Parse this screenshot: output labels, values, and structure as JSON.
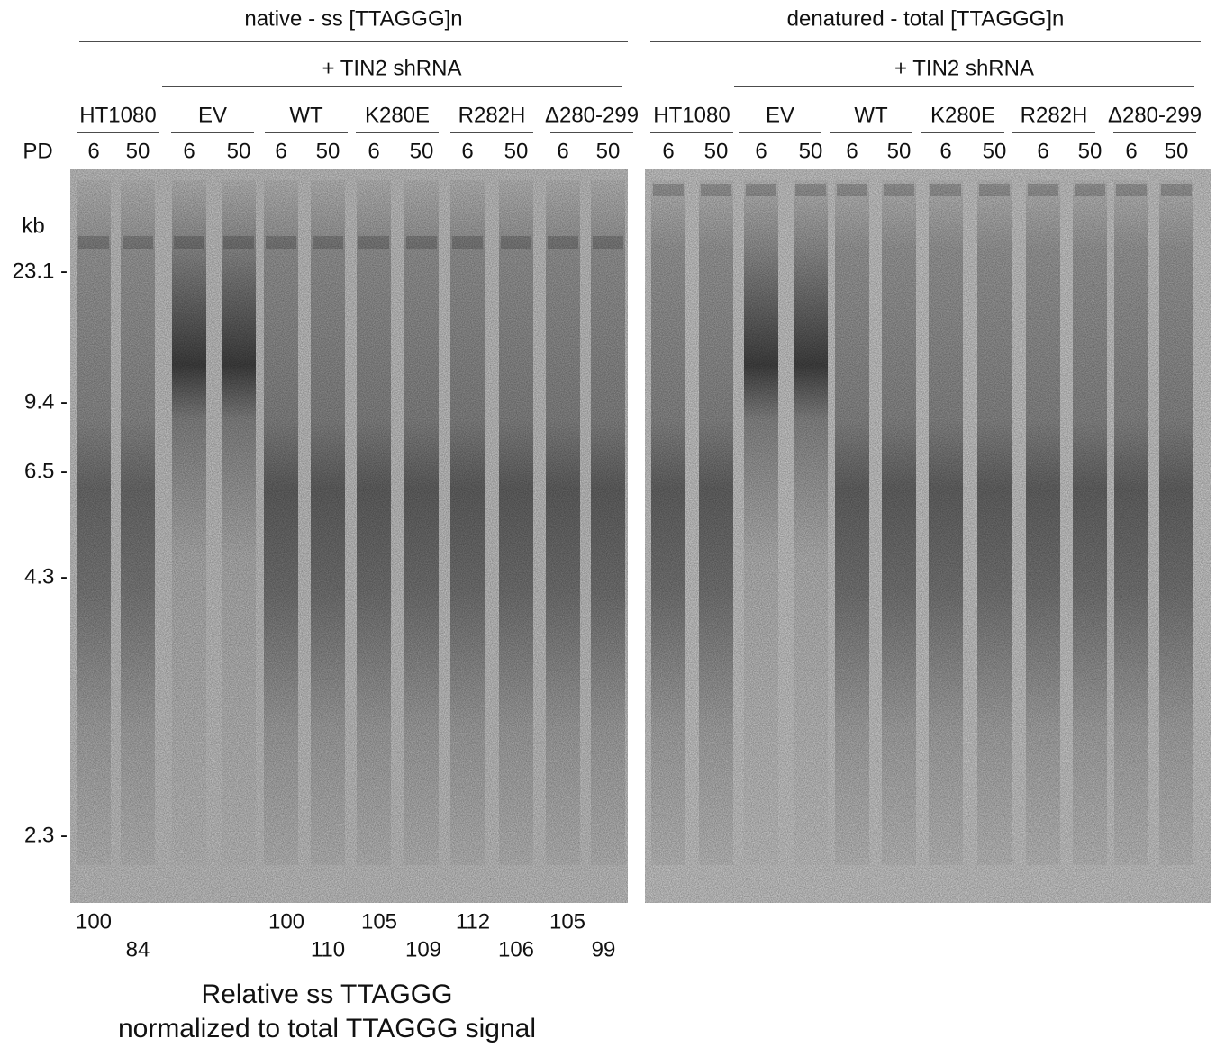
{
  "panels": [
    {
      "title": "native - ss [TTAGGG]n",
      "treatment": "+ TIN2 shRNA",
      "groups": [
        {
          "label": "HT1080",
          "lanes": [
            6,
            50
          ]
        },
        {
          "label": "EV",
          "lanes": [
            6,
            50
          ]
        },
        {
          "label": "WT",
          "lanes": [
            6,
            50
          ]
        },
        {
          "label": "K280E",
          "lanes": [
            6,
            50
          ]
        },
        {
          "label": "R282H",
          "lanes": [
            6,
            50
          ]
        },
        {
          "label": "Δ280-299",
          "lanes": [
            6,
            50
          ]
        }
      ]
    },
    {
      "title": "denatured - total [TTAGGG]n",
      "treatment": "+ TIN2 shRNA",
      "groups": [
        {
          "label": "HT1080",
          "lanes": [
            6,
            50
          ]
        },
        {
          "label": "EV",
          "lanes": [
            6,
            50
          ]
        },
        {
          "label": "WT",
          "lanes": [
            6,
            50
          ]
        },
        {
          "label": "K280E",
          "lanes": [
            6,
            50
          ]
        },
        {
          "label": "R282H",
          "lanes": [
            6,
            50
          ]
        },
        {
          "label": "Δ280-299",
          "lanes": [
            6,
            50
          ]
        }
      ]
    }
  ],
  "row_label": "PD",
  "unit_label": "kb",
  "markers": [
    "23.1 -",
    "9.4 -",
    "6.5 -",
    "4.3 -",
    "2.3 -"
  ],
  "quantification": {
    "values": [
      100,
      84,
      100,
      110,
      105,
      109,
      112,
      106,
      105,
      99
    ],
    "caption": [
      "Relative ss TTAGGG",
      "normalized to total TTAGGG signal"
    ]
  }
}
